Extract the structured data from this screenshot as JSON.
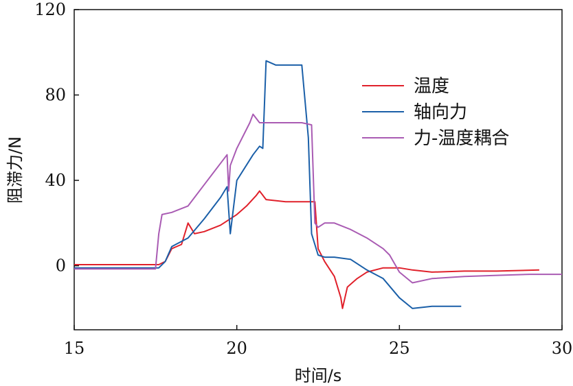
{
  "chart_data": {
    "type": "line",
    "xlabel": "时间/s",
    "ylabel": "阻滞力/N",
    "xlim": [
      15,
      30
    ],
    "ylim": [
      -30,
      120
    ],
    "xticks": [
      "15",
      "20",
      "25",
      "30"
    ],
    "yticks": [
      "0",
      "40",
      "80",
      "120"
    ],
    "legend_position": "right",
    "series": [
      {
        "name": "温度",
        "color": "#e0202a",
        "x": [
          15,
          17.6,
          17.8,
          18.0,
          18.3,
          18.5,
          18.7,
          19.0,
          19.5,
          20.0,
          20.3,
          20.6,
          20.7,
          20.9,
          21.5,
          22.0,
          22.4,
          22.5,
          22.7,
          23.0,
          23.2,
          23.25,
          23.4,
          23.7,
          24.0,
          24.5,
          25.0,
          25.4,
          26.0,
          27.0,
          28.0,
          29.3
        ],
        "y": [
          0.5,
          0.5,
          2,
          8,
          10,
          20,
          15,
          16,
          19,
          24,
          28,
          33,
          35,
          31,
          30,
          30,
          30,
          8,
          2,
          -5,
          -15,
          -20,
          -10,
          -6,
          -3,
          -1,
          -1,
          -2,
          -3,
          -2.5,
          -2.5,
          -2
        ]
      },
      {
        "name": "轴向力",
        "color": "#1a5fa8",
        "x": [
          15,
          17.6,
          17.8,
          18.0,
          18.5,
          19.0,
          19.5,
          19.7,
          19.8,
          20.0,
          20.5,
          20.7,
          20.8,
          20.9,
          21.2,
          22.0,
          22.2,
          22.3,
          22.5,
          22.7,
          23.0,
          23.5,
          24.0,
          24.5,
          25.0,
          25.4,
          26.0,
          26.9
        ],
        "y": [
          -1,
          -1,
          2,
          9,
          13,
          22,
          32,
          37,
          15,
          40,
          52,
          56,
          55,
          96,
          94,
          94,
          60,
          15,
          5,
          4,
          4,
          3,
          -2,
          -6,
          -15,
          -20,
          -19,
          -19
        ]
      },
      {
        "name": "力-温度耦合",
        "color": "#a95bb3",
        "x": [
          15,
          17.5,
          17.6,
          17.7,
          18.0,
          18.5,
          19.0,
          19.5,
          19.7,
          19.75,
          19.8,
          20.0,
          20.4,
          20.5,
          20.7,
          21.0,
          22.0,
          22.3,
          22.4,
          22.5,
          22.7,
          23.0,
          23.5,
          24.0,
          24.5,
          24.7,
          25.0,
          25.4,
          26.0,
          27.0,
          28.0,
          29.0,
          30.0
        ],
        "y": [
          -1.5,
          -1.5,
          15,
          24,
          25,
          28,
          38,
          48,
          52,
          35,
          47,
          55,
          67,
          71,
          67,
          67,
          67,
          66,
          20,
          18,
          20,
          20,
          17,
          13,
          8,
          5,
          -3,
          -8,
          -6,
          -5,
          -4.5,
          -4,
          -4
        ]
      }
    ]
  }
}
